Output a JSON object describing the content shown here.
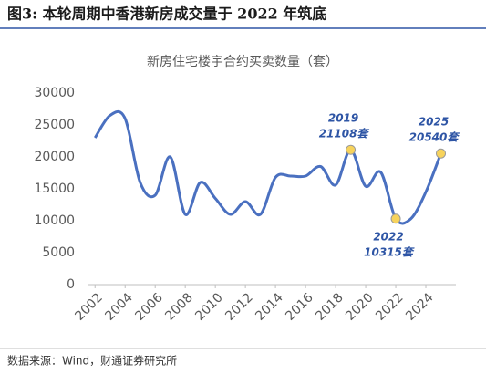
{
  "header": {
    "title": "图3: 本轮周期中香港新房成交量于 2022 年筑底"
  },
  "chart_data": {
    "type": "line",
    "title": "新房住宅楼宇合约买卖数量（套）",
    "x": [
      2002,
      2003,
      2004,
      2005,
      2006,
      2007,
      2008,
      2009,
      2010,
      2011,
      2012,
      2013,
      2014,
      2015,
      2016,
      2017,
      2018,
      2019,
      2020,
      2021,
      2022,
      2023,
      2024,
      2025
    ],
    "series": [
      {
        "name": "新房住宅楼宇合约买卖数量",
        "color": "#4a70c0",
        "values": [
          23000,
          26500,
          26000,
          16000,
          14000,
          20000,
          11000,
          16000,
          13500,
          11000,
          13000,
          11000,
          16800,
          17000,
          17000,
          18500,
          15600,
          21108,
          15400,
          17600,
          10315,
          10300,
          14500,
          20540
        ]
      }
    ],
    "xlim": [
      2001.5,
      2026
    ],
    "xticks": [
      2002,
      2004,
      2006,
      2008,
      2010,
      2012,
      2014,
      2016,
      2018,
      2020,
      2022,
      2024
    ],
    "ylim": [
      0,
      30000
    ],
    "yticks": [
      0,
      5000,
      10000,
      15000,
      20000,
      25000,
      30000
    ],
    "marker_color": "#f7d35c",
    "annotations": [
      {
        "x": 2019,
        "label": "21108套"
      },
      {
        "x": 2022,
        "label": "10315套"
      },
      {
        "x": 2025,
        "label": "20540套"
      }
    ]
  },
  "footer": {
    "source": "数据来源：Wind，财通证券研究所"
  }
}
